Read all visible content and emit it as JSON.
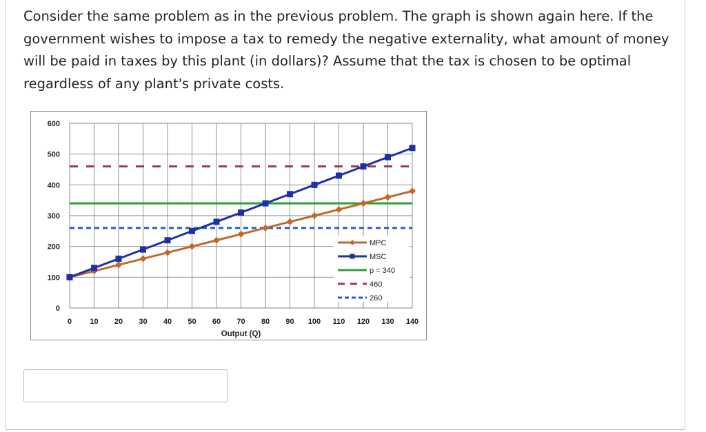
{
  "question": {
    "text": "Consider the same problem as in the previous problem. The graph is shown again here. If the government wishes to impose a tax to remedy the negative externality, what amount of money will be paid in taxes by this plant (in dollars)? Assume that the tax is chosen to be optimal regardless of any plant's private costs."
  },
  "answer": {
    "value": "",
    "placeholder": ""
  },
  "colors": {
    "mpc": "#c0692a",
    "msc": "#1f2fa6",
    "p340": "#2e9e3a",
    "line460": "#9b3a55",
    "line260": "#1f5fd1",
    "grid": "#808080"
  },
  "chart_data": {
    "type": "line",
    "xlabel": "Output (Q)",
    "ylabel": "",
    "xlim": [
      0,
      140
    ],
    "ylim": [
      0,
      600
    ],
    "x_ticks": [
      0,
      10,
      20,
      30,
      40,
      50,
      60,
      70,
      80,
      90,
      100,
      110,
      120,
      130,
      140
    ],
    "y_ticks": [
      0,
      100,
      200,
      300,
      400,
      500,
      600
    ],
    "grid": true,
    "legend_position": "lower-right",
    "x": [
      0,
      10,
      20,
      30,
      40,
      50,
      60,
      70,
      80,
      90,
      100,
      110,
      120,
      130,
      140
    ],
    "series": [
      {
        "name": "MPC",
        "style": "solid-diamond",
        "values": [
          100,
          120,
          140,
          160,
          180,
          200,
          220,
          240,
          260,
          280,
          300,
          320,
          340,
          360,
          380
        ]
      },
      {
        "name": "MSC",
        "style": "solid-square",
        "values": [
          100,
          130,
          160,
          190,
          220,
          250,
          280,
          310,
          340,
          370,
          400,
          430,
          460,
          490,
          520
        ]
      },
      {
        "name": "p = 340",
        "style": "solid",
        "values": [
          340,
          340,
          340,
          340,
          340,
          340,
          340,
          340,
          340,
          340,
          340,
          340,
          340,
          340,
          340
        ]
      },
      {
        "name": "460",
        "style": "dashed",
        "values": [
          460,
          460,
          460,
          460,
          460,
          460,
          460,
          460,
          460,
          460,
          460,
          460,
          460,
          460,
          460
        ]
      },
      {
        "name": "260",
        "style": "dashed",
        "values": [
          260,
          260,
          260,
          260,
          260,
          260,
          260,
          260,
          260,
          260,
          260,
          260,
          260,
          260,
          260
        ]
      }
    ]
  }
}
